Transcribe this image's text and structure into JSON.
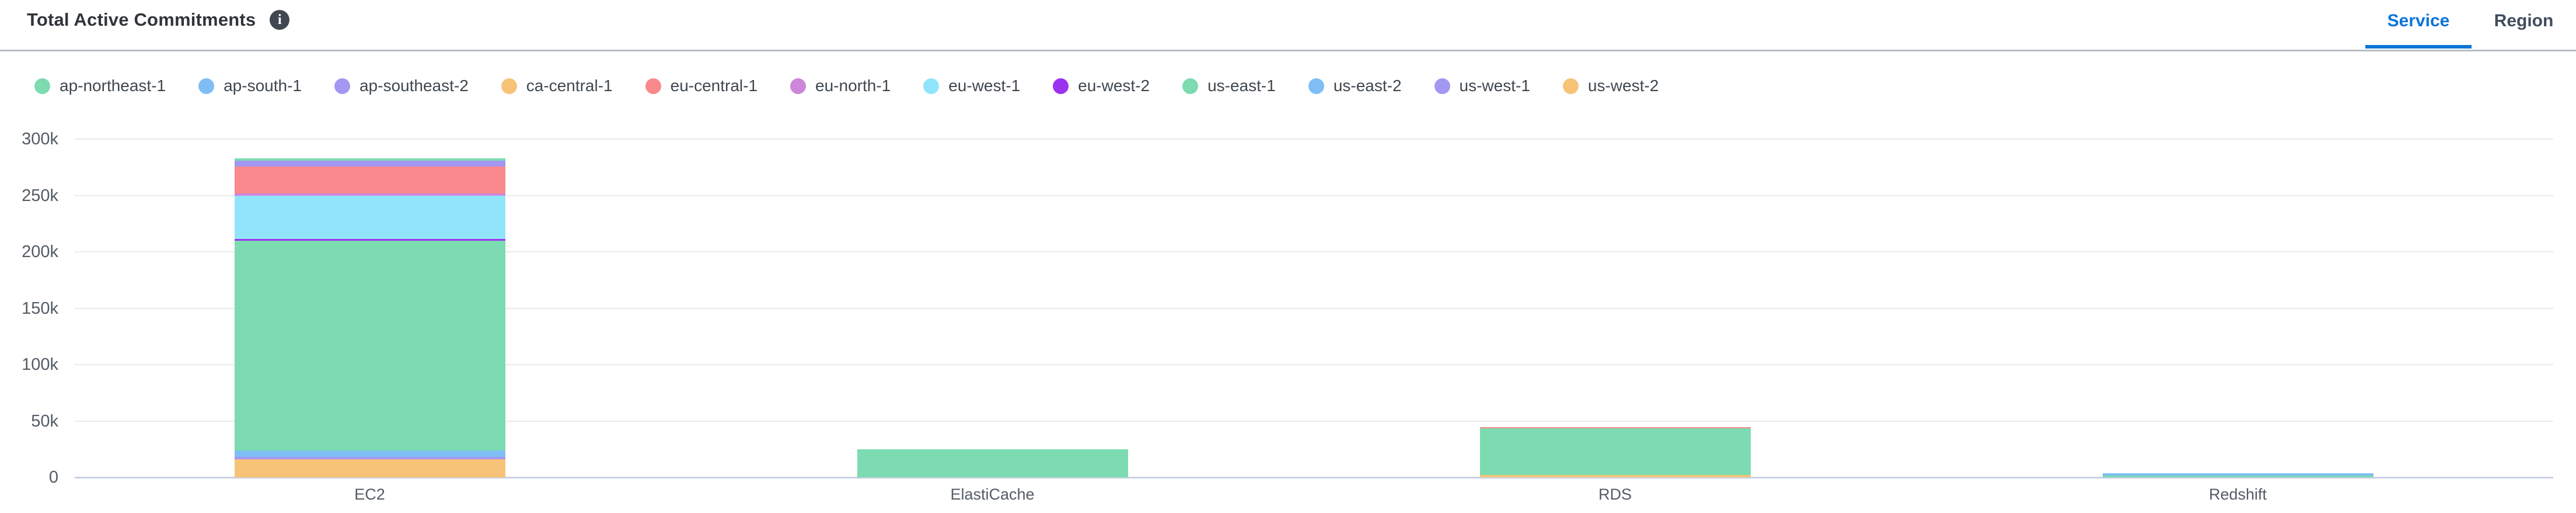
{
  "header": {
    "title": "Total Active Commitments",
    "info_icon_glyph": "i"
  },
  "tabs": [
    {
      "label": "Service",
      "active": true
    },
    {
      "label": "Region",
      "active": false
    }
  ],
  "chart_data": {
    "type": "bar",
    "stacked": true,
    "title": "Total Active Commitments",
    "categories": [
      "EC2",
      "ElastiCache",
      "RDS",
      "Redshift"
    ],
    "series": [
      {
        "name": "ap-northeast-1",
        "color": "#7CDBB0",
        "values": [
          1700,
          0,
          0,
          0
        ]
      },
      {
        "name": "ap-south-1",
        "color": "#7EBEF5",
        "values": [
          0,
          0,
          0,
          2100
        ]
      },
      {
        "name": "ap-southeast-2",
        "color": "#A297F2",
        "values": [
          5500,
          0,
          0,
          0
        ]
      },
      {
        "name": "ca-central-1",
        "color": "#F6C377",
        "values": [
          0,
          0,
          0,
          0
        ]
      },
      {
        "name": "eu-central-1",
        "color": "#F9898C",
        "values": [
          24000,
          0,
          1000,
          0
        ]
      },
      {
        "name": "eu-north-1",
        "color": "#CD86D9",
        "values": [
          1700,
          0,
          0,
          0
        ]
      },
      {
        "name": "eu-west-1",
        "color": "#91E5FB",
        "values": [
          38700,
          0,
          0,
          0
        ]
      },
      {
        "name": "eu-west-2",
        "color": "#9C33F0",
        "values": [
          1400,
          0,
          0,
          0
        ]
      },
      {
        "name": "us-east-1",
        "color": "#7CDBB0",
        "values": [
          186000,
          25000,
          41500,
          1600
        ]
      },
      {
        "name": "us-east-2",
        "color": "#7EBEF5",
        "values": [
          5500,
          0,
          0,
          0
        ]
      },
      {
        "name": "us-west-1",
        "color": "#A297F2",
        "values": [
          2200,
          0,
          0,
          0
        ]
      },
      {
        "name": "us-west-2",
        "color": "#F6C377",
        "values": [
          16100,
          0,
          2200,
          0
        ]
      }
    ],
    "stack_order": "first-series-on-top",
    "ylim": [
      0,
      300000
    ],
    "ytick_labels": [
      "0",
      "50k",
      "100k",
      "150k",
      "200k",
      "250k",
      "300k"
    ],
    "grid": true,
    "legend_position": "top",
    "xlabel": "",
    "ylabel": "",
    "accent_colors": {
      "active_tab": "#0b74d9",
      "baseline": "#c9d1e4",
      "gridline": "#e9eaed"
    }
  }
}
